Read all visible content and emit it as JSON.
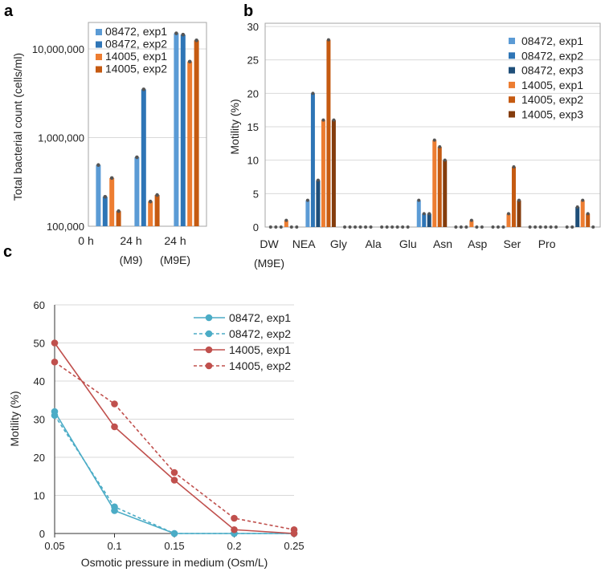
{
  "chart_data": [
    {
      "panel": "a",
      "type": "bar",
      "yscale": "log",
      "ylabel": "Total bacterial count (cells/ml)",
      "ylim": [
        100000,
        20000000
      ],
      "yticks": [
        {
          "value": 100000,
          "label": "100,000"
        },
        {
          "value": 1000000,
          "label": "1,000,000"
        },
        {
          "value": 10000000,
          "label": "10,000,000"
        }
      ],
      "categories": [
        [
          "0 h"
        ],
        [
          "24 h",
          "(M9)"
        ],
        [
          "24 h",
          "(M9E)"
        ]
      ],
      "legend_position": "top-left",
      "grid": true,
      "series": [
        {
          "name": "08472, exp1",
          "color": "#5b9bd5",
          "values": [
            490000,
            600000,
            15000000
          ]
        },
        {
          "name": "08472, exp2",
          "color": "#2e75b6",
          "values": [
            215000,
            3500000,
            14500000
          ]
        },
        {
          "name": "14005, exp1",
          "color": "#ed7d31",
          "values": [
            350000,
            190000,
            7200000
          ]
        },
        {
          "name": "14005, exp2",
          "color": "#c55a11",
          "values": [
            148000,
            225000,
            12500000
          ]
        }
      ]
    },
    {
      "panel": "b",
      "type": "bar",
      "ylabel": "Motility (%)",
      "ylim": [
        0,
        30
      ],
      "yticks": [
        0,
        5,
        10,
        15,
        20,
        25,
        30
      ],
      "categories": [
        [
          "DW",
          "(M9E)"
        ],
        [
          "NEA"
        ],
        [
          "Gly"
        ],
        [
          "Ala"
        ],
        [
          "Glu"
        ],
        [
          "Asn"
        ],
        [
          "Asp"
        ],
        [
          "Ser"
        ],
        [
          "Pro"
        ]
      ],
      "legend_position": "top-right",
      "grid": true,
      "series": [
        {
          "name": "08472, exp1",
          "color": "#5b9bd5",
          "values": [
            0,
            4,
            0,
            0,
            4,
            0,
            0,
            0,
            0
          ]
        },
        {
          "name": "08472, exp2",
          "color": "#2e75b6",
          "values": [
            0,
            20,
            0,
            0,
            2,
            0,
            0,
            0,
            0
          ]
        },
        {
          "name": "08472, exp3",
          "color": "#1f4e79",
          "values": [
            0,
            7,
            0,
            0,
            2,
            0,
            0,
            0,
            3
          ]
        },
        {
          "name": "14005, exp1",
          "color": "#ed7d31",
          "values": [
            1,
            16,
            0,
            0,
            13,
            1,
            2,
            0,
            4
          ]
        },
        {
          "name": "14005, exp2",
          "color": "#c55a11",
          "values": [
            0,
            28,
            0,
            0,
            12,
            0,
            9,
            0,
            2
          ]
        },
        {
          "name": "14005, exp3",
          "color": "#843c0c",
          "values": [
            0,
            16,
            0,
            0,
            10,
            0,
            4,
            0,
            0
          ]
        }
      ]
    },
    {
      "panel": "c",
      "type": "line",
      "xlabel": "Osmotic pressure in medium (Osm/L)",
      "ylabel": "Motility (%)",
      "xlim": [
        0.05,
        0.25
      ],
      "ylim": [
        0,
        60
      ],
      "xticks": [
        0.05,
        0.1,
        0.15,
        0.2,
        0.25
      ],
      "yticks": [
        0,
        10,
        20,
        30,
        40,
        50,
        60
      ],
      "legend_position": "top-right",
      "grid": true,
      "x": [
        0.05,
        0.1,
        0.15,
        0.2,
        0.25
      ],
      "series": [
        {
          "name": "08472, exp1",
          "color": "#4bacc6",
          "dashed": false,
          "values": [
            32,
            6,
            0,
            0,
            0
          ]
        },
        {
          "name": "08472, exp2",
          "color": "#4bacc6",
          "dashed": true,
          "values": [
            31,
            7,
            0,
            0,
            0
          ]
        },
        {
          "name": "14005, exp1",
          "color": "#c0504d",
          "dashed": false,
          "values": [
            50,
            28,
            14,
            1,
            0
          ]
        },
        {
          "name": "14005, exp2",
          "color": "#c0504d",
          "dashed": true,
          "values": [
            45,
            34,
            16,
            4,
            1
          ]
        }
      ]
    }
  ]
}
